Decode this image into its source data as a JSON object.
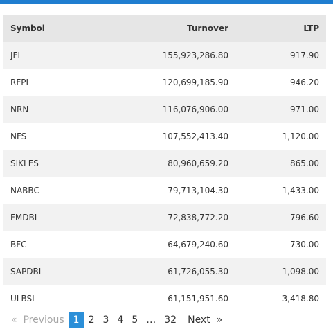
{
  "table": {
    "headers": {
      "symbol": "Symbol",
      "turnover": "Turnover",
      "ltp": "LTP"
    },
    "rows": [
      {
        "symbol": "JFL",
        "turnover": "155,923,286.80",
        "ltp": "917.90"
      },
      {
        "symbol": "RFPL",
        "turnover": "120,699,185.90",
        "ltp": "946.20"
      },
      {
        "symbol": "NRN",
        "turnover": "116,076,906.00",
        "ltp": "971.00"
      },
      {
        "symbol": "NFS",
        "turnover": "107,552,413.40",
        "ltp": "1,120.00"
      },
      {
        "symbol": "SIKLES",
        "turnover": "80,960,659.20",
        "ltp": "865.00"
      },
      {
        "symbol": "NABBC",
        "turnover": "79,713,104.30",
        "ltp": "1,433.00"
      },
      {
        "symbol": "FMDBL",
        "turnover": "72,838,772.20",
        "ltp": "796.60"
      },
      {
        "symbol": "BFC",
        "turnover": "64,679,240.60",
        "ltp": "730.00"
      },
      {
        "symbol": "SAPDBL",
        "turnover": "61,726,055.30",
        "ltp": "1,098.00"
      },
      {
        "symbol": "ULBSL",
        "turnover": "61,151,951.60",
        "ltp": "3,418.80"
      }
    ]
  },
  "pagination": {
    "prev_arrow": "«",
    "previous": "Previous",
    "pages": [
      "1",
      "2",
      "3",
      "4",
      "5"
    ],
    "ellipsis": "…",
    "last_page": "32",
    "next": "Next",
    "next_arrow": "»"
  },
  "colors": {
    "accent": "#1f7ed0",
    "active_page": "#2b8fd8"
  }
}
